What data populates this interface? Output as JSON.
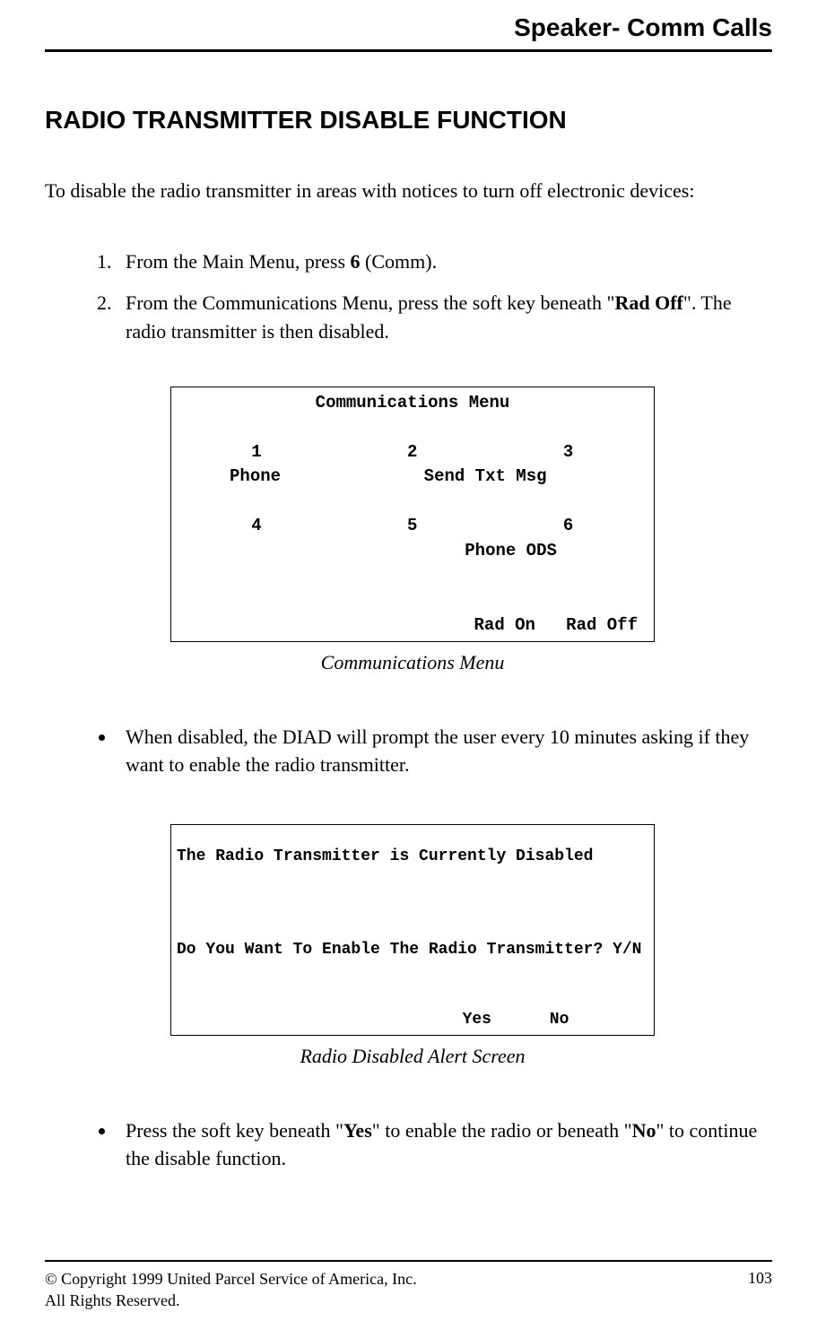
{
  "header": {
    "title": "Speaker- Comm Calls"
  },
  "heading": "RADIO TRANSMITTER DISABLE FUNCTION",
  "intro": "To disable the radio transmitter in areas with notices to turn off electronic devices:",
  "steps": {
    "s1a": "From the Main Menu, press ",
    "s1b": "6",
    "s1c": " (Comm).",
    "s2a": "From the Communications Menu, press the soft key beneath \"",
    "s2b": "Rad Off",
    "s2c": "\".  The radio transmitter is then disabled."
  },
  "menu1": {
    "title": "Communications Menu",
    "n1": "1",
    "n2": "2",
    "n3": "3",
    "l1": "Phone",
    "l3": "Send Txt Msg",
    "n4": "4",
    "n5": "5",
    "n6": "6",
    "l6": "Phone ODS",
    "sk1": "Rad On",
    "sk2": "Rad Off",
    "caption": "Communications Menu"
  },
  "bullet1": "When disabled, the DIAD will prompt the user every 10 minutes asking if they want to enable the radio transmitter.",
  "menu2": {
    "line1": "The Radio Transmitter is Currently Disabled",
    "line2": "Do You Want To Enable The Radio Transmitter? Y/N",
    "sk1": "Yes",
    "sk2": "No",
    "caption": "Radio Disabled Alert Screen"
  },
  "bullet2": {
    "a": "Press the soft key beneath \"",
    "b": "Yes",
    "c": "\" to enable the radio or beneath \"",
    "d": "No",
    "e": "\" to continue the disable function."
  },
  "footer": {
    "copyright": "© Copyright 1999 United Parcel Service of America, Inc.",
    "rights": "All Rights Reserved.",
    "page": "103"
  }
}
